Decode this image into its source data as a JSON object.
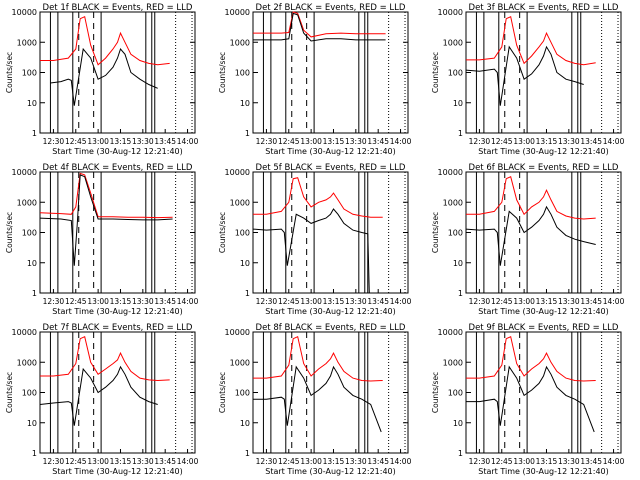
{
  "figure": {
    "xlabel": "Start Time (30-Aug-12 12:21:40)",
    "ylabel": "Counts/sec"
  },
  "chart_data": [
    {
      "type": "line",
      "title": "Det 1f BLACK = Events, RED = LLD",
      "xlabel": "Start Time (30-Aug-12 12:21:40)",
      "ylabel": "Counts/sec",
      "y_scale": "log",
      "ylim": [
        1,
        10000
      ],
      "xlim": [
        "12:30",
        "14:00"
      ],
      "x_ticks": [
        "12:30",
        "12:45",
        "13:00",
        "13:15",
        "13:30",
        "13:45",
        "14:00"
      ],
      "y_ticks": [
        "1",
        "10",
        "100",
        "1000",
        "10000"
      ],
      "series": [
        {
          "name": "RED = LLD",
          "color": "#ff0000",
          "x": [
            "12:21",
            "12:30",
            "12:40",
            "12:45",
            "12:48",
            "12:51",
            "12:55",
            "13:00",
            "13:05",
            "13:10",
            "13:13",
            "13:15",
            "13:18",
            "13:22",
            "13:28",
            "13:34",
            "13:40",
            "13:48"
          ],
          "y": [
            250,
            250,
            300,
            600,
            6000,
            7000,
            800,
            180,
            300,
            600,
            1000,
            2000,
            1000,
            400,
            250,
            200,
            180,
            200
          ]
        },
        {
          "name": "BLACK = Events",
          "color": "#000000",
          "x": [
            "12:28",
            "12:35",
            "12:40",
            "12:42",
            "12:44",
            "12:50",
            "12:55",
            "13:00",
            "13:05",
            "13:10",
            "13:13",
            "13:15",
            "13:18",
            "13:22",
            "13:28",
            "13:34",
            "13:40"
          ],
          "y": [
            45,
            50,
            60,
            55,
            8,
            600,
            300,
            60,
            80,
            150,
            300,
            600,
            400,
            100,
            60,
            40,
            30
          ]
        }
      ]
    },
    {
      "type": "line",
      "title": "Det 2f BLACK = Events, RED = LLD",
      "xlabel": "Start Time (30-Aug-12 12:21:40)",
      "ylabel": "Counts/sec",
      "y_scale": "log",
      "ylim": [
        1,
        10000
      ],
      "xlim": [
        "12:30",
        "14:00"
      ],
      "x_ticks": [
        "12:30",
        "12:45",
        "13:00",
        "13:15",
        "13:30",
        "13:45",
        "14:00"
      ],
      "y_ticks": [
        "1",
        "10",
        "100",
        "1000",
        "10000"
      ],
      "series": [
        {
          "name": "RED = LLD",
          "color": "#ff0000",
          "x": [
            "12:21",
            "12:40",
            "12:45",
            "12:48",
            "12:51",
            "12:55",
            "13:00",
            "13:10",
            "13:20",
            "13:30",
            "13:40",
            "13:50"
          ],
          "y": [
            2000,
            2000,
            2100,
            10000,
            9000,
            2500,
            1500,
            1900,
            2000,
            1900,
            1900,
            1900
          ]
        },
        {
          "name": "BLACK = Events",
          "color": "#000000",
          "x": [
            "12:21",
            "12:40",
            "12:45",
            "12:48",
            "12:51",
            "12:55",
            "13:00",
            "13:10",
            "13:20",
            "13:30",
            "13:40",
            "13:50"
          ],
          "y": [
            1200,
            1200,
            1300,
            9000,
            8000,
            2000,
            1100,
            1300,
            1300,
            1200,
            1200,
            1200
          ]
        }
      ]
    },
    {
      "type": "line",
      "title": "Det 3f BLACK = Events, RED = LLD",
      "xlabel": "Start Time (30-Aug-12 12:21:40)",
      "ylabel": "Counts/sec",
      "y_scale": "log",
      "ylim": [
        1,
        10000
      ],
      "xlim": [
        "12:30",
        "14:00"
      ],
      "x_ticks": [
        "12:30",
        "12:45",
        "13:00",
        "13:15",
        "13:30",
        "13:45",
        "14:00"
      ],
      "y_ticks": [
        "1",
        "10",
        "100",
        "1000",
        "10000"
      ],
      "series": [
        {
          "name": "RED = LLD",
          "color": "#ff0000",
          "x": [
            "12:21",
            "12:30",
            "12:40",
            "12:45",
            "12:48",
            "12:51",
            "12:55",
            "13:00",
            "13:05",
            "13:10",
            "13:13",
            "13:15",
            "13:18",
            "13:22",
            "13:28",
            "13:34",
            "13:40",
            "13:48"
          ],
          "y": [
            260,
            260,
            300,
            700,
            6000,
            7000,
            800,
            200,
            350,
            700,
            1100,
            2000,
            1000,
            400,
            250,
            200,
            180,
            210
          ]
        },
        {
          "name": "BLACK = Events",
          "color": "#000000",
          "x": [
            "12:21",
            "12:30",
            "12:40",
            "12:42",
            "12:44",
            "12:50",
            "12:55",
            "13:00",
            "13:05",
            "13:10",
            "13:13",
            "13:15",
            "13:18",
            "13:22",
            "13:28",
            "13:34",
            "13:40"
          ],
          "y": [
            120,
            110,
            130,
            100,
            8,
            700,
            300,
            60,
            90,
            180,
            350,
            700,
            400,
            100,
            60,
            50,
            40
          ]
        }
      ]
    },
    {
      "type": "line",
      "title": "Det 4f BLACK = Events, RED = LLD",
      "xlabel": "Start Time (30-Aug-12 12:21:40)",
      "ylabel": "Counts/sec",
      "y_scale": "log",
      "ylim": [
        1,
        10000
      ],
      "xlim": [
        "12:30",
        "14:00"
      ],
      "x_ticks": [
        "12:30",
        "12:45",
        "13:00",
        "13:15",
        "13:30",
        "13:45",
        "14:00"
      ],
      "y_ticks": [
        "1",
        "10",
        "100",
        "1000",
        "10000"
      ],
      "series": [
        {
          "name": "RED = LLD",
          "color": "#ff0000",
          "x": [
            "12:21",
            "12:35",
            "12:42",
            "12:45",
            "12:48",
            "12:51",
            "12:55",
            "13:00",
            "13:10",
            "13:20",
            "13:30",
            "13:40",
            "13:50"
          ],
          "y": [
            450,
            420,
            400,
            700,
            9000,
            8000,
            2000,
            330,
            330,
            320,
            320,
            310,
            320
          ]
        },
        {
          "name": "BLACK = Events",
          "color": "#000000",
          "x": [
            "12:21",
            "12:35",
            "12:42",
            "12:44",
            "12:46",
            "12:48",
            "12:51",
            "12:55",
            "13:00",
            "13:10",
            "13:20",
            "13:30",
            "13:40",
            "13:50"
          ],
          "y": [
            300,
            280,
            250,
            8,
            200,
            8000,
            7000,
            1500,
            280,
            280,
            270,
            260,
            260,
            280
          ]
        }
      ]
    },
    {
      "type": "line",
      "title": "Det 5f BLACK = Events, RED = LLD",
      "xlabel": "Start Time (30-Aug-12 12:21:40)",
      "ylabel": "Counts/sec",
      "y_scale": "log",
      "ylim": [
        1,
        10000
      ],
      "xlim": [
        "12:30",
        "14:00"
      ],
      "x_ticks": [
        "12:30",
        "12:45",
        "13:00",
        "13:15",
        "13:30",
        "13:45",
        "14:00"
      ],
      "y_ticks": [
        "1",
        "10",
        "100",
        "1000",
        "10000"
      ],
      "series": [
        {
          "name": "RED = LLD",
          "color": "#ff0000",
          "x": [
            "12:21",
            "12:30",
            "12:40",
            "12:45",
            "12:48",
            "12:51",
            "12:55",
            "13:00",
            "13:05",
            "13:10",
            "13:13",
            "13:15",
            "13:18",
            "13:22",
            "13:28",
            "13:34",
            "13:40",
            "13:48"
          ],
          "y": [
            400,
            400,
            500,
            1000,
            6000,
            6500,
            1500,
            700,
            1000,
            1200,
            1500,
            2000,
            1200,
            600,
            400,
            350,
            320,
            320
          ]
        },
        {
          "name": "BLACK = Events",
          "color": "#000000",
          "x": [
            "12:21",
            "12:30",
            "12:40",
            "12:42",
            "12:44",
            "12:50",
            "12:55",
            "13:00",
            "13:05",
            "13:10",
            "13:13",
            "13:15",
            "13:18",
            "13:22",
            "13:28",
            "13:34",
            "13:38",
            "13:39"
          ],
          "y": [
            130,
            120,
            130,
            100,
            8,
            400,
            300,
            200,
            250,
            300,
            400,
            600,
            400,
            200,
            120,
            100,
            90,
            1
          ]
        }
      ]
    },
    {
      "type": "line",
      "title": "Det 6f BLACK = Events, RED = LLD",
      "xlabel": "Start Time (30-Aug-12 12:21:40)",
      "ylabel": "Counts/sec",
      "y_scale": "log",
      "ylim": [
        1,
        10000
      ],
      "xlim": [
        "12:30",
        "14:00"
      ],
      "x_ticks": [
        "12:30",
        "12:45",
        "13:00",
        "13:15",
        "13:30",
        "13:45",
        "14:00"
      ],
      "y_ticks": [
        "1",
        "10",
        "100",
        "1000",
        "10000"
      ],
      "series": [
        {
          "name": "RED = LLD",
          "color": "#ff0000",
          "x": [
            "12:21",
            "12:30",
            "12:40",
            "12:45",
            "12:48",
            "12:51",
            "12:55",
            "13:00",
            "13:05",
            "13:10",
            "13:13",
            "13:15",
            "13:18",
            "13:22",
            "13:28",
            "13:34",
            "13:40",
            "13:48"
          ],
          "y": [
            400,
            400,
            500,
            1000,
            6000,
            7000,
            1200,
            400,
            700,
            1000,
            1500,
            2500,
            1200,
            500,
            350,
            300,
            280,
            300
          ]
        },
        {
          "name": "BLACK = Events",
          "color": "#000000",
          "x": [
            "12:21",
            "12:30",
            "12:40",
            "12:42",
            "12:44",
            "12:50",
            "12:55",
            "13:00",
            "13:05",
            "13:10",
            "13:13",
            "13:15",
            "13:18",
            "13:22",
            "13:28",
            "13:34",
            "13:40",
            "13:48"
          ],
          "y": [
            130,
            120,
            130,
            100,
            8,
            500,
            300,
            100,
            150,
            250,
            400,
            700,
            400,
            150,
            80,
            60,
            50,
            40
          ]
        }
      ]
    },
    {
      "type": "line",
      "title": "Det 7f BLACK = Events, RED = LLD",
      "xlabel": "Start Time (30-Aug-12 12:21:40)",
      "ylabel": "Counts/sec",
      "y_scale": "log",
      "ylim": [
        1,
        10000
      ],
      "xlim": [
        "12:30",
        "14:00"
      ],
      "x_ticks": [
        "12:30",
        "12:45",
        "13:00",
        "13:15",
        "13:30",
        "13:45",
        "14:00"
      ],
      "y_ticks": [
        "1",
        "10",
        "100",
        "1000",
        "10000"
      ],
      "series": [
        {
          "name": "RED = LLD",
          "color": "#ff0000",
          "x": [
            "12:21",
            "12:30",
            "12:40",
            "12:45",
            "12:48",
            "12:51",
            "12:55",
            "13:00",
            "13:05",
            "13:10",
            "13:13",
            "13:15",
            "13:18",
            "13:22",
            "13:28",
            "13:34",
            "13:40",
            "13:48"
          ],
          "y": [
            350,
            350,
            400,
            900,
            6000,
            7000,
            1000,
            400,
            600,
            900,
            1200,
            2000,
            1000,
            500,
            300,
            260,
            250,
            260
          ]
        },
        {
          "name": "BLACK = Events",
          "color": "#000000",
          "x": [
            "12:21",
            "12:30",
            "12:40",
            "12:42",
            "12:44",
            "12:50",
            "12:55",
            "13:00",
            "13:05",
            "13:10",
            "13:13",
            "13:15",
            "13:18",
            "13:22",
            "13:28",
            "13:34",
            "13:40"
          ],
          "y": [
            40,
            45,
            50,
            45,
            8,
            600,
            300,
            100,
            150,
            250,
            400,
            700,
            400,
            150,
            70,
            50,
            40
          ]
        }
      ]
    },
    {
      "type": "line",
      "title": "Det 8f BLACK = Events, RED = LLD",
      "xlabel": "Start Time (30-Aug-12 12:21:40)",
      "ylabel": "Counts/sec",
      "y_scale": "log",
      "ylim": [
        1,
        10000
      ],
      "xlim": [
        "12:30",
        "14:00"
      ],
      "x_ticks": [
        "12:30",
        "12:45",
        "13:00",
        "13:15",
        "13:30",
        "13:45",
        "14:00"
      ],
      "y_ticks": [
        "1",
        "10",
        "100",
        "1000",
        "10000"
      ],
      "series": [
        {
          "name": "RED = LLD",
          "color": "#ff0000",
          "x": [
            "12:21",
            "12:30",
            "12:40",
            "12:45",
            "12:48",
            "12:51",
            "12:55",
            "13:00",
            "13:05",
            "13:10",
            "13:13",
            "13:15",
            "13:18",
            "13:22",
            "13:28",
            "13:34",
            "13:40",
            "13:48"
          ],
          "y": [
            300,
            300,
            350,
            800,
            6000,
            7000,
            900,
            350,
            600,
            900,
            1300,
            2000,
            1000,
            500,
            300,
            250,
            240,
            250
          ]
        },
        {
          "name": "BLACK = Events",
          "color": "#000000",
          "x": [
            "12:21",
            "12:30",
            "12:40",
            "12:42",
            "12:44",
            "12:50",
            "12:55",
            "13:00",
            "13:05",
            "13:10",
            "13:13",
            "13:15",
            "13:18",
            "13:22",
            "13:28",
            "13:34",
            "13:40",
            "13:47"
          ],
          "y": [
            60,
            60,
            70,
            60,
            8,
            700,
            300,
            80,
            120,
            200,
            350,
            700,
            400,
            150,
            80,
            60,
            40,
            5
          ]
        }
      ]
    },
    {
      "type": "line",
      "title": "Det 9f BLACK = Events, RED = LLD",
      "xlabel": "Start Time (30-Aug-12 12:21:40)",
      "ylabel": "Counts/sec",
      "y_scale": "log",
      "ylim": [
        1,
        10000
      ],
      "xlim": [
        "12:30",
        "14:00"
      ],
      "x_ticks": [
        "12:30",
        "12:45",
        "13:00",
        "13:15",
        "13:30",
        "13:45",
        "14:00"
      ],
      "y_ticks": [
        "1",
        "10",
        "100",
        "1000",
        "10000"
      ],
      "series": [
        {
          "name": "RED = LLD",
          "color": "#ff0000",
          "x": [
            "12:21",
            "12:30",
            "12:40",
            "12:45",
            "12:48",
            "12:51",
            "12:55",
            "13:00",
            "13:05",
            "13:10",
            "13:13",
            "13:15",
            "13:18",
            "13:22",
            "13:28",
            "13:34",
            "13:40",
            "13:48"
          ],
          "y": [
            300,
            300,
            350,
            800,
            6000,
            7000,
            900,
            350,
            600,
            900,
            1300,
            2000,
            1000,
            500,
            300,
            250,
            240,
            250
          ]
        },
        {
          "name": "BLACK = Events",
          "color": "#000000",
          "x": [
            "12:21",
            "12:30",
            "12:40",
            "12:42",
            "12:44",
            "12:50",
            "12:55",
            "13:00",
            "13:05",
            "13:10",
            "13:13",
            "13:15",
            "13:18",
            "13:22",
            "13:28",
            "13:34",
            "13:40",
            "13:47"
          ],
          "y": [
            50,
            50,
            60,
            50,
            8,
            700,
            300,
            80,
            120,
            200,
            350,
            700,
            400,
            150,
            80,
            60,
            40,
            5
          ]
        }
      ]
    }
  ]
}
